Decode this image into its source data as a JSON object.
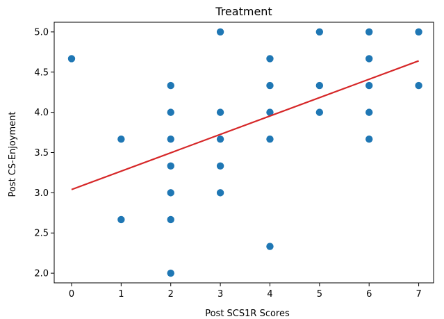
{
  "chart_data": {
    "type": "scatter",
    "title": "Treatment",
    "xlabel": "Post SCS1R Scores",
    "ylabel": "Post CS-Enjoyment",
    "xlim": [
      -0.35,
      7.3
    ],
    "ylim": [
      1.88,
      5.12
    ],
    "xticks": [
      0,
      1,
      2,
      3,
      4,
      5,
      6,
      7
    ],
    "yticks": [
      2.0,
      2.5,
      3.0,
      3.5,
      4.0,
      4.5,
      5.0
    ],
    "grid": false,
    "points": [
      [
        0,
        4.667
      ],
      [
        1,
        3.667
      ],
      [
        1,
        2.667
      ],
      [
        2,
        4.333
      ],
      [
        2,
        4.0
      ],
      [
        2,
        3.667
      ],
      [
        2,
        3.333
      ],
      [
        2,
        3.0
      ],
      [
        2,
        2.667
      ],
      [
        2,
        2.0
      ],
      [
        3,
        5.0
      ],
      [
        3,
        4.0
      ],
      [
        3,
        3.667
      ],
      [
        3,
        3.333
      ],
      [
        3,
        3.0
      ],
      [
        4,
        4.667
      ],
      [
        4,
        4.333
      ],
      [
        4,
        4.0
      ],
      [
        4,
        3.667
      ],
      [
        4,
        2.333
      ],
      [
        5,
        5.0
      ],
      [
        5,
        4.333
      ],
      [
        5,
        4.0
      ],
      [
        6,
        5.0
      ],
      [
        6,
        4.667
      ],
      [
        6,
        4.333
      ],
      [
        6,
        4.0
      ],
      [
        6,
        3.667
      ],
      [
        7,
        5.0
      ],
      [
        7,
        4.333
      ]
    ],
    "fit_line": {
      "x": [
        0,
        7
      ],
      "y": [
        3.04,
        4.64
      ]
    },
    "colors": {
      "points": "#1f77b4",
      "fit_line": "#d62728"
    }
  }
}
